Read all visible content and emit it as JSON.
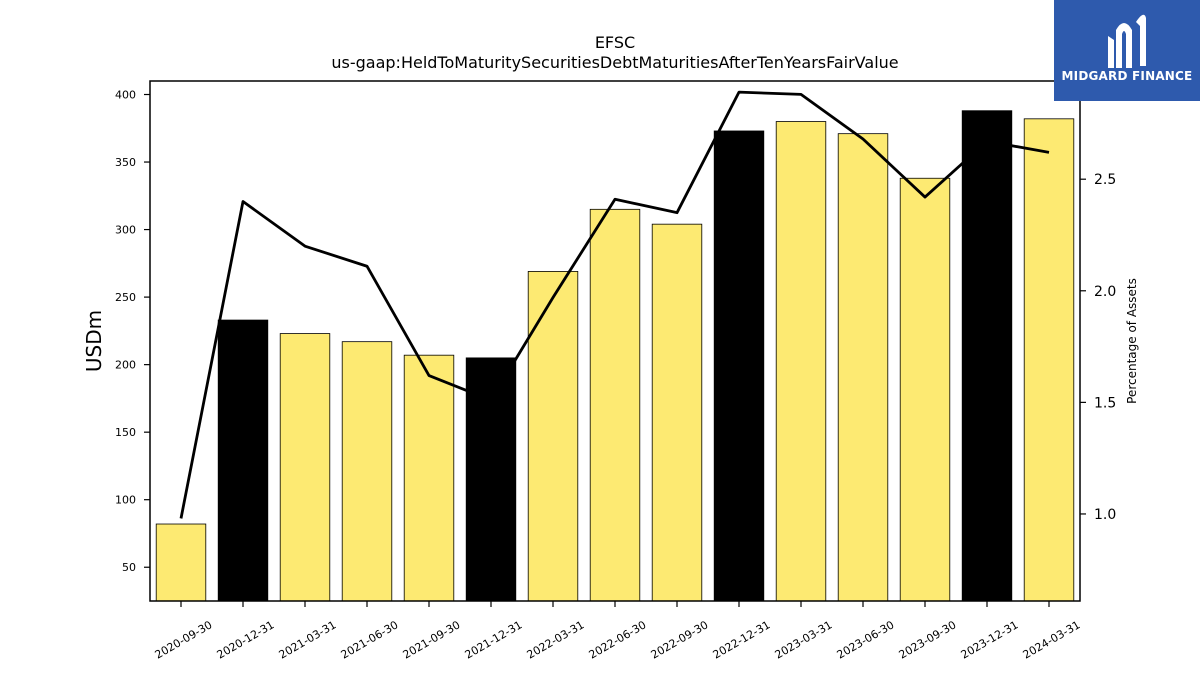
{
  "chart_data": {
    "type": "bar",
    "title": "EFSC",
    "subtitle": "us-gaap:HeldToMaturitySecuritiesDebtMaturitiesAfterTenYearsFairValue",
    "ylabel": "USDm",
    "y2label": "Percentage of Assets",
    "categories": [
      "2020-09-30",
      "2020-12-31",
      "2021-03-31",
      "2021-06-30",
      "2021-09-30",
      "2021-12-31",
      "2022-03-31",
      "2022-06-30",
      "2022-09-30",
      "2022-12-31",
      "2023-03-31",
      "2023-06-30",
      "2023-09-30",
      "2023-12-31",
      "2024-03-31"
    ],
    "series": [
      {
        "type": "bar",
        "axis": "left",
        "values": [
          82,
          233,
          223,
          217,
          207,
          205,
          269,
          315,
          304,
          373,
          380,
          371,
          338,
          388,
          382
        ]
      },
      {
        "type": "line",
        "axis": "right",
        "values": [
          0.98,
          2.4,
          2.2,
          2.11,
          1.62,
          1.51,
          1.97,
          2.41,
          2.35,
          2.89,
          2.88,
          2.68,
          2.42,
          2.67,
          2.62
        ]
      }
    ],
    "bar_colors": [
      "#fdea72",
      "#000000",
      "#fdea72",
      "#fdea72",
      "#fdea72",
      "#000000",
      "#fdea72",
      "#fdea72",
      "#fdea72",
      "#000000",
      "#fdea72",
      "#fdea72",
      "#fdea72",
      "#000000",
      "#fdea72"
    ],
    "line_color": "#000000",
    "ylim": [
      25,
      410
    ],
    "y2lim": [
      0.61,
      2.94
    ],
    "yticks": [
      50,
      100,
      150,
      200,
      250,
      300,
      350,
      400
    ],
    "y2ticks": [
      1.0,
      1.5,
      2.0,
      2.5
    ],
    "y2ticks_labels": [
      "1.0",
      "1.5",
      "2.0",
      "2.5"
    ],
    "grid": false
  },
  "logo": {
    "text": "MIDGARD FINANCE",
    "background": "#2e5aad"
  }
}
